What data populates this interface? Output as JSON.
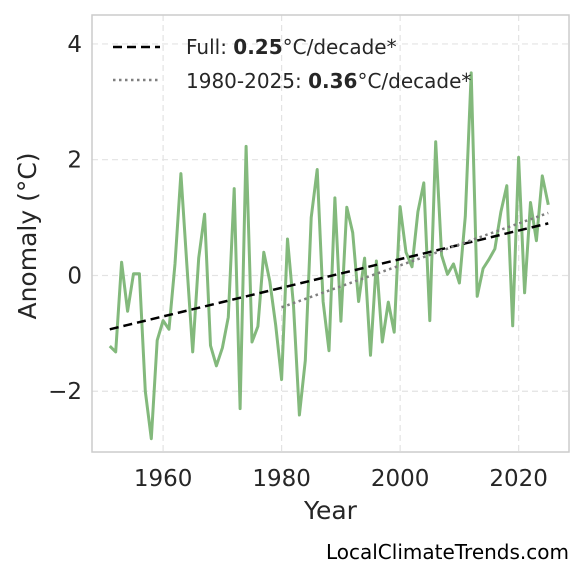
{
  "chart_data": {
    "type": "line",
    "xlabel": "Year",
    "ylabel": "Anomaly (°C)",
    "xlim": [
      1948,
      2028.5
    ],
    "ylim": [
      -3.05,
      4.5
    ],
    "xticks": [
      "1960",
      "1980",
      "2000",
      "2020"
    ],
    "yticks": [
      "4",
      "2",
      "0",
      "−2"
    ],
    "grid": true,
    "legend_position": "top-left",
    "series": [
      {
        "color": "#83b97c",
        "x": [
          1951,
          1952,
          1953,
          1954,
          1955,
          1956,
          1957,
          1958,
          1959,
          1960,
          1961,
          1962,
          1963,
          1964,
          1965,
          1966,
          1967,
          1968,
          1969,
          1970,
          1971,
          1972,
          1973,
          1974,
          1975,
          1976,
          1977,
          1978,
          1979,
          1980,
          1981,
          1982,
          1983,
          1984,
          1985,
          1986,
          1987,
          1988,
          1989,
          1990,
          1991,
          1992,
          1993,
          1994,
          1995,
          1996,
          1997,
          1998,
          1999,
          2000,
          2001,
          2002,
          2003,
          2004,
          2005,
          2006,
          2007,
          2008,
          2009,
          2010,
          2011,
          2012,
          2013,
          2014,
          2015,
          2016,
          2017,
          2018,
          2019,
          2020,
          2021,
          2022,
          2023,
          2024,
          2025
        ],
        "y": [
          -1.22,
          -1.32,
          0.23,
          -0.62,
          0.03,
          0.03,
          -2.0,
          -2.82,
          -1.12,
          -0.78,
          -0.93,
          0.2,
          1.76,
          0.2,
          -1.32,
          0.3,
          1.06,
          -1.21,
          -1.56,
          -1.25,
          -0.72,
          1.5,
          -2.3,
          2.23,
          -1.15,
          -0.88,
          0.4,
          -0.1,
          -0.86,
          -1.8,
          0.63,
          -0.52,
          -2.41,
          -1.47,
          1.0,
          1.83,
          -0.45,
          -1.3,
          1.34,
          -0.79,
          1.18,
          0.74,
          -0.45,
          0.3,
          -1.38,
          0.25,
          -1.15,
          -0.46,
          -0.98,
          1.19,
          0.4,
          0.15,
          1.1,
          1.6,
          -0.78,
          2.31,
          0.35,
          0.02,
          0.2,
          -0.13,
          1.02,
          3.5,
          -0.36,
          0.12,
          0.28,
          0.46,
          1.1,
          1.55,
          -0.87,
          2.04,
          -0.3,
          1.26,
          0.6,
          1.72,
          1.22
        ]
      }
    ],
    "trends": [
      {
        "label_prefix": "Full: ",
        "rate": "0.25",
        "label_suffix": "°C/decade*",
        "style": "dashed",
        "color": "#000000",
        "x": [
          1951,
          2025
        ],
        "y": [
          -0.93,
          0.9
        ]
      },
      {
        "label_prefix": "1980-2025: ",
        "rate": "0.36",
        "label_suffix": "°C/decade*",
        "style": "dotted",
        "color": "#7f7f7f",
        "x": [
          1980,
          2025
        ],
        "y": [
          -0.55,
          1.08
        ]
      }
    ]
  },
  "credit": "LocalClimateTrends.com"
}
